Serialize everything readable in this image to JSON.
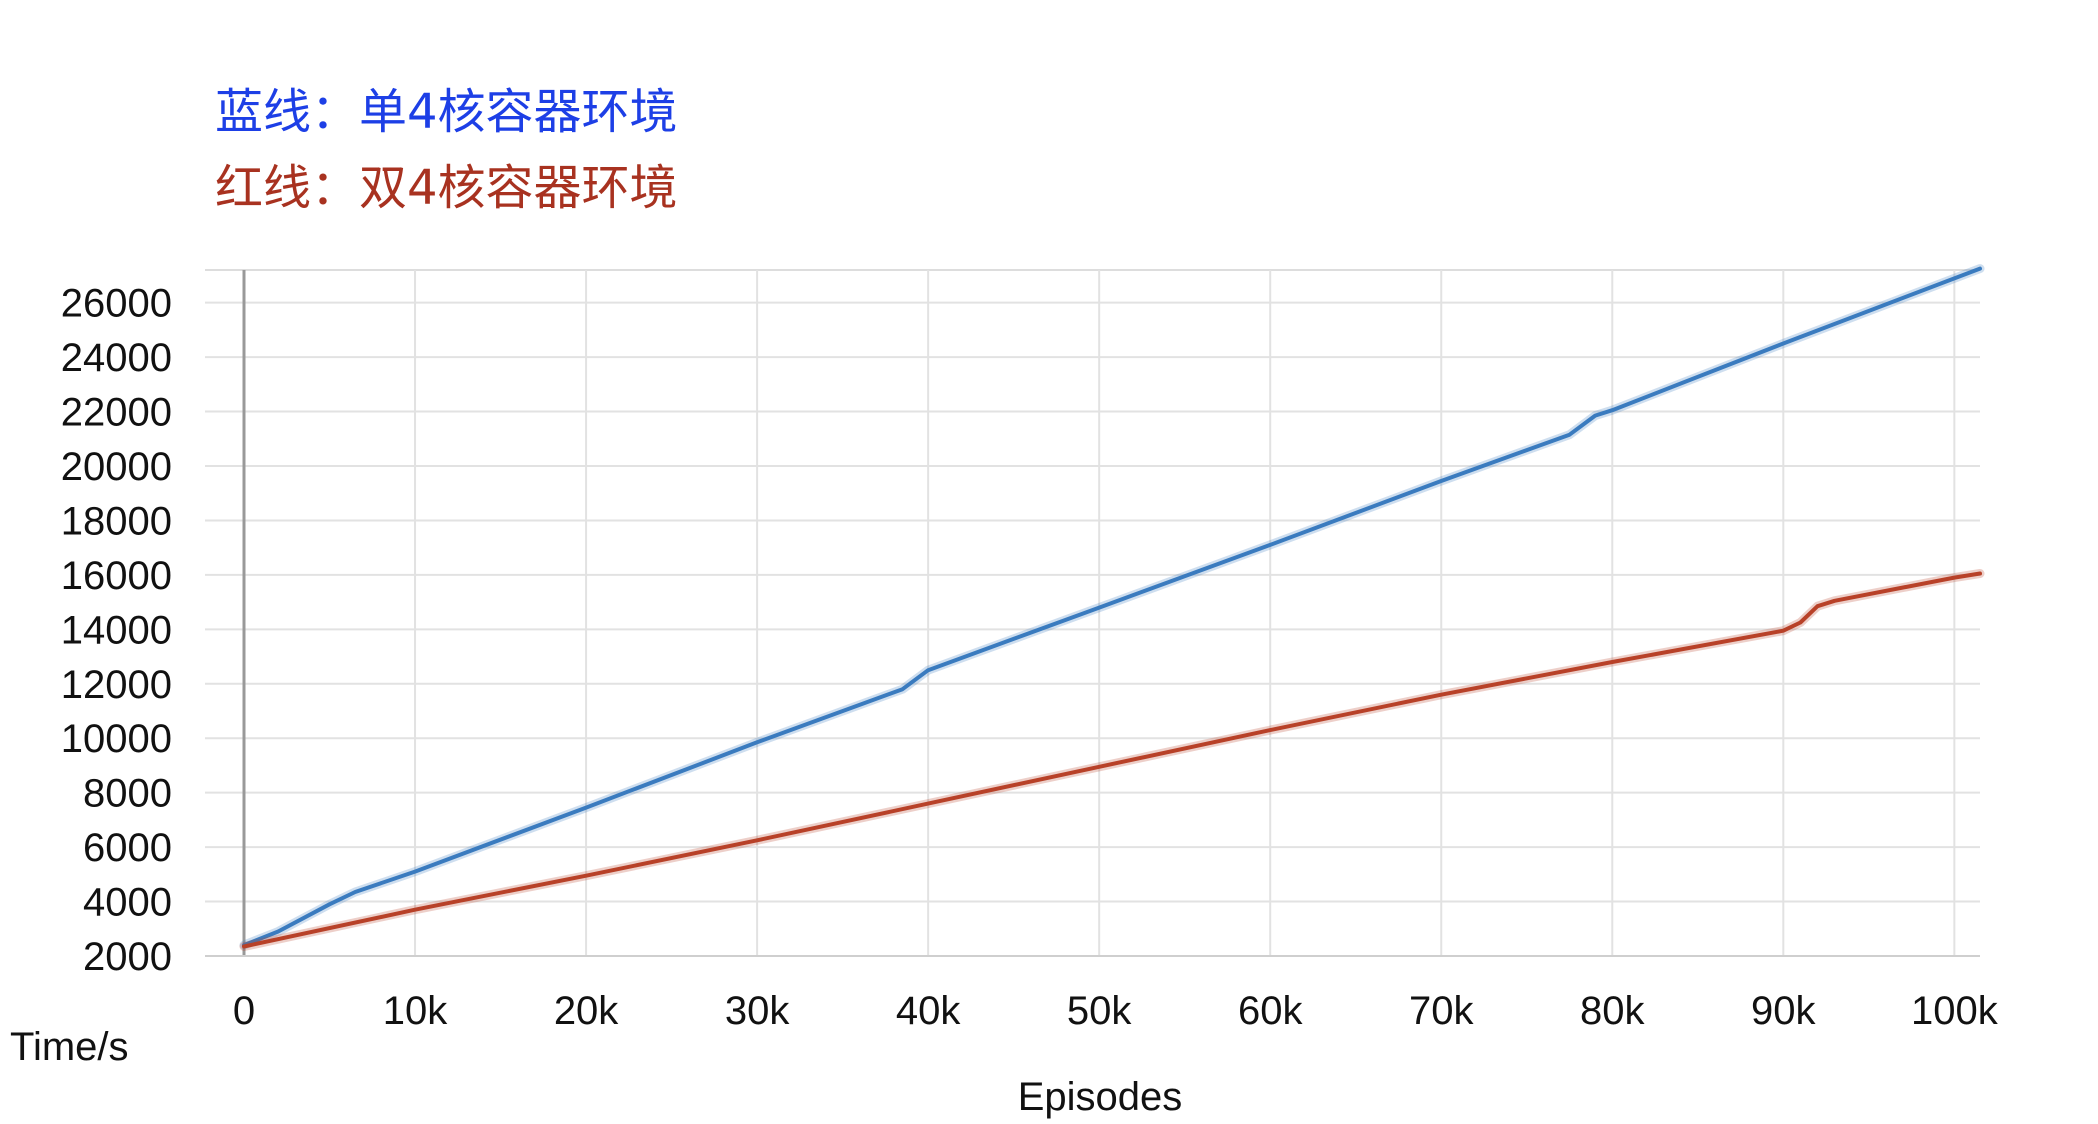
{
  "legend": [
    {
      "text": "蓝线：单4核容器环境",
      "color": "#1d3fe6"
    },
    {
      "text": "红线：双4核容器环境",
      "color": "#a83220"
    }
  ],
  "chart_data": {
    "type": "line",
    "xlabel": "Episodes",
    "ylabel": "Time/s",
    "xlim": [
      0,
      101500
    ],
    "ylim": [
      2000,
      27200
    ],
    "x_ticks": [
      0,
      10000,
      20000,
      30000,
      40000,
      50000,
      60000,
      70000,
      80000,
      90000,
      100000
    ],
    "x_tick_labels": [
      "0",
      "10k",
      "20k",
      "30k",
      "40k",
      "50k",
      "60k",
      "70k",
      "80k",
      "90k",
      "100k"
    ],
    "y_ticks": [
      2000,
      4000,
      6000,
      8000,
      10000,
      12000,
      14000,
      16000,
      18000,
      20000,
      22000,
      24000,
      26000
    ],
    "y_tick_labels": [
      "2000",
      "4000",
      "6000",
      "8000",
      "10000",
      "12000",
      "14000",
      "16000",
      "18000",
      "20000",
      "22000",
      "24000",
      "26000"
    ],
    "grid": true,
    "series": [
      {
        "color": "#3a7bbf",
        "x": [
          0,
          2000,
          5000,
          6500,
          10000,
          20000,
          30000,
          38500,
          40000,
          50000,
          60000,
          70000,
          77500,
          79000,
          80000,
          90000,
          101500
        ],
        "y": [
          2400,
          2900,
          3900,
          4350,
          5100,
          7450,
          9850,
          11800,
          12500,
          14800,
          17100,
          19450,
          21150,
          21850,
          22050,
          24500,
          27250
        ]
      },
      {
        "color": "#b84128",
        "x": [
          0,
          10000,
          20000,
          30000,
          40000,
          50000,
          60000,
          70000,
          80000,
          90000,
          91000,
          92000,
          93000,
          100000,
          101500
        ],
        "y": [
          2350,
          3700,
          4950,
          6250,
          7600,
          8950,
          10300,
          11600,
          12800,
          13950,
          14250,
          14850,
          15050,
          15900,
          16050
        ]
      }
    ]
  }
}
